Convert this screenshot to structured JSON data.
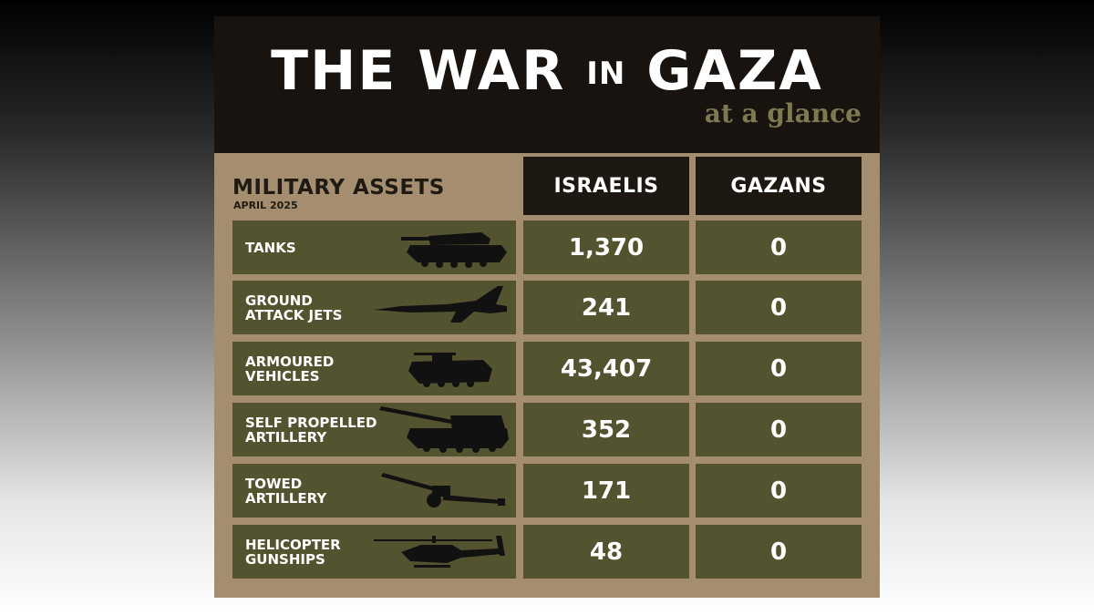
{
  "header": {
    "title_part1": "THE WAR",
    "title_part2": "IN",
    "title_part3": "GAZA",
    "subtitle": "at a glance"
  },
  "section": {
    "title": "MILITARY ASSETS",
    "date": "APRIL 2025"
  },
  "columns": [
    "ISRAELIS",
    "GAZANS"
  ],
  "rows": [
    {
      "label": "TANKS",
      "israelis": "1,370",
      "gazans": "0",
      "icon": "tank-icon"
    },
    {
      "label": "GROUND\nATTACK JETS",
      "israelis": "241",
      "gazans": "0",
      "icon": "jet-icon"
    },
    {
      "label": "ARMOURED\nVEHICLES",
      "israelis": "43,407",
      "gazans": "0",
      "icon": "armoured-vehicle-icon"
    },
    {
      "label": "SELF PROPELLED\nARTILLERY",
      "israelis": "352",
      "gazans": "0",
      "icon": "self-propelled-artillery-icon"
    },
    {
      "label": "TOWED\nARTILLERY",
      "israelis": "171",
      "gazans": "0",
      "icon": "towed-artillery-icon"
    },
    {
      "label": "HELICOPTER\nGUNSHIPS",
      "israelis": "48",
      "gazans": "0",
      "icon": "helicopter-icon"
    }
  ]
}
